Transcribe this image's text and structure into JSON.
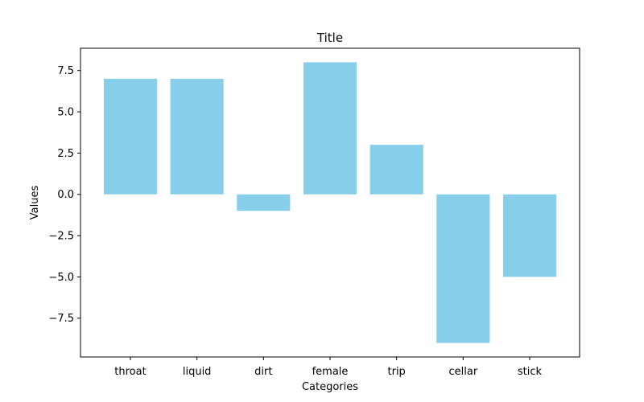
{
  "chart_data": {
    "type": "bar",
    "title": "Title",
    "xlabel": "Categories",
    "ylabel": "Values",
    "categories": [
      "throat",
      "liquid",
      "dirt",
      "female",
      "trip",
      "cellar",
      "stick"
    ],
    "values": [
      7,
      7,
      -1,
      8,
      3,
      -9,
      -5
    ],
    "ylim": [
      -9.85,
      8.85
    ],
    "yticks": [
      -7.5,
      -5.0,
      -2.5,
      0.0,
      2.5,
      5.0,
      7.5
    ],
    "ytick_labels": [
      "−7.5",
      "−5.0",
      "−2.5",
      "0.0",
      "2.5",
      "5.0",
      "7.5"
    ],
    "bar_color": "#87ceeb",
    "grid": false,
    "legend": "none"
  }
}
